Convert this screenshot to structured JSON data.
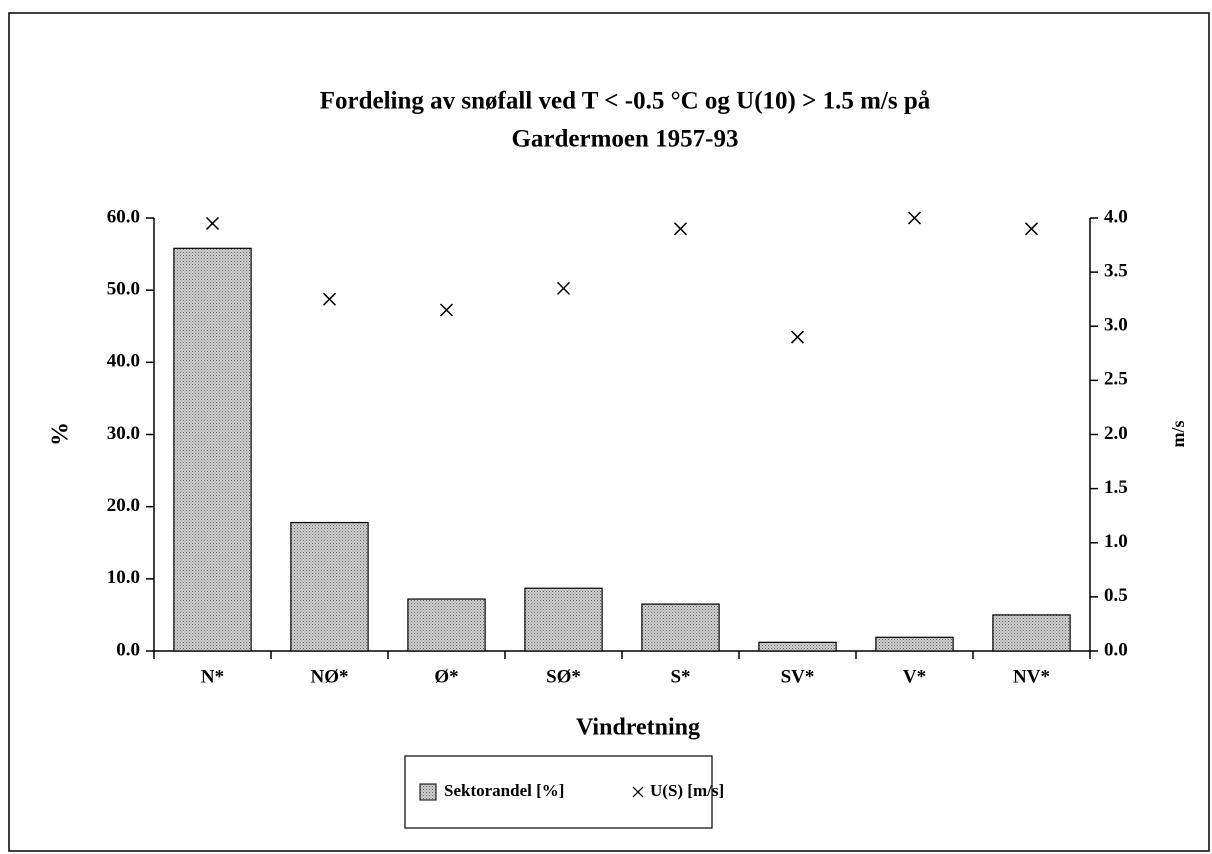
{
  "chart_data": {
    "type": "bar",
    "title": [
      "Fordeling av snøfall ved T < -0.5 °C og U(10) > 1.5 m/s på",
      "Gardermoen 1957-93"
    ],
    "xlabel": "Vindretning",
    "ylabel": "%",
    "y2label": "m/s",
    "categories": [
      "N*",
      "NØ*",
      "Ø*",
      "SØ*",
      "S*",
      "SV*",
      "V*",
      "NV*"
    ],
    "series": [
      {
        "name": "Sektorandel [%]",
        "color": "#cfcfcf",
        "values": [
          55.8,
          17.8,
          7.2,
          8.7,
          6.5,
          1.2,
          1.9,
          5.0
        ]
      },
      {
        "name": "U(S) [m/s]",
        "color": "#000000",
        "marker": "x",
        "axis": "y2",
        "values": [
          3.95,
          3.25,
          3.15,
          3.35,
          3.9,
          2.9,
          4.0,
          3.9
        ]
      }
    ],
    "ylim": [
      0,
      60
    ],
    "yticks": [
      {
        "value": 0,
        "label": "0.0"
      },
      {
        "value": 10,
        "label": "10.0"
      },
      {
        "value": 20,
        "label": "20.0"
      },
      {
        "value": 30,
        "label": "30.0"
      },
      {
        "value": 40,
        "label": "40.0"
      },
      {
        "value": 50,
        "label": "50.0"
      },
      {
        "value": 60,
        "label": "60.0"
      }
    ],
    "y2lim": [
      0,
      4
    ],
    "y2ticks": [
      {
        "value": 0,
        "label": "0.0"
      },
      {
        "value": 0.5,
        "label": "0.5"
      },
      {
        "value": 1,
        "label": "1.0"
      },
      {
        "value": 1.5,
        "label": "1.5"
      },
      {
        "value": 2,
        "label": "2.0"
      },
      {
        "value": 2.5,
        "label": "2.5"
      },
      {
        "value": 3,
        "label": "3.0"
      },
      {
        "value": 3.5,
        "label": "3.5"
      },
      {
        "value": 4,
        "label": "4.0"
      }
    ],
    "grid": false,
    "legend": "bottom"
  }
}
